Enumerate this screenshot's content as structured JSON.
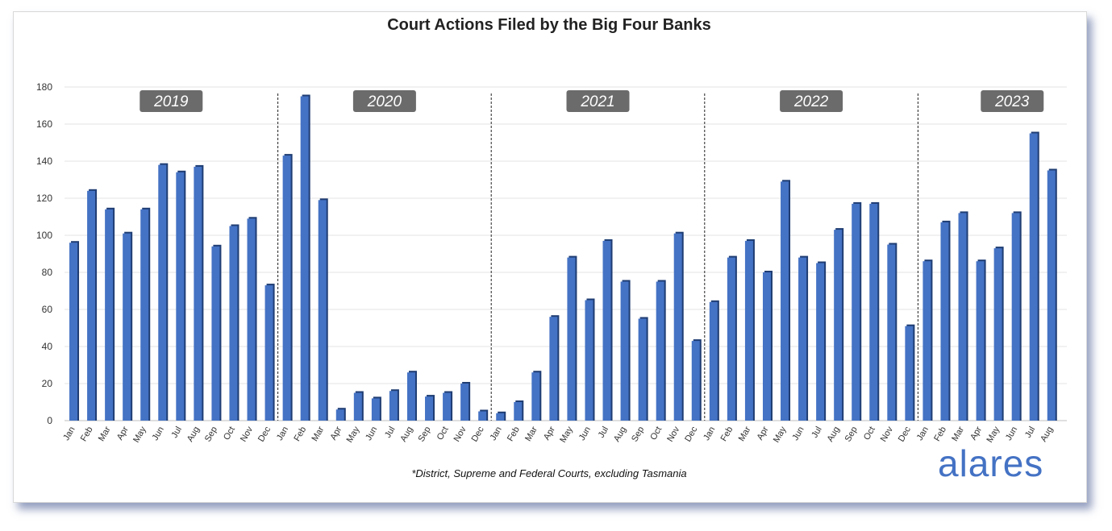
{
  "chart_data": {
    "type": "bar",
    "title": "Court Actions Filed by the Big Four Banks",
    "footnote": "*District, Supreme and Federal Courts, excluding Tasmania",
    "ylim": [
      0,
      180
    ],
    "yticks": [
      0,
      20,
      40,
      60,
      80,
      100,
      120,
      140,
      160,
      180
    ],
    "grid": true,
    "bar_color": "#4472c4",
    "years": [
      {
        "label": "2019",
        "months": [
          "Jan",
          "Feb",
          "Mar",
          "Apr",
          "May",
          "Jun",
          "Jul",
          "Aug",
          "Sep",
          "Oct",
          "Nov",
          "Dec"
        ],
        "values": [
          96,
          124,
          114,
          101,
          114,
          138,
          134,
          137,
          94,
          105,
          109,
          73
        ]
      },
      {
        "label": "2020",
        "months": [
          "Jan",
          "Feb",
          "Mar",
          "Apr",
          "May",
          "Jun",
          "Jul",
          "Aug",
          "Sep",
          "Oct",
          "Nov",
          "Dec"
        ],
        "values": [
          143,
          175,
          119,
          6,
          15,
          12,
          16,
          26,
          13,
          15,
          20,
          5
        ]
      },
      {
        "label": "2021",
        "months": [
          "Jan",
          "Feb",
          "Mar",
          "Apr",
          "May",
          "Jun",
          "Jul",
          "Aug",
          "Sep",
          "Oct",
          "Nov",
          "Dec"
        ],
        "values": [
          4,
          10,
          26,
          56,
          88,
          65,
          97,
          75,
          55,
          75,
          101,
          43
        ]
      },
      {
        "label": "2022",
        "months": [
          "Jan",
          "Feb",
          "Mar",
          "Apr",
          "May",
          "Jun",
          "Jul",
          "Aug",
          "Sep",
          "Oct",
          "Nov",
          "Dec"
        ],
        "values": [
          64,
          88,
          97,
          80,
          129,
          88,
          85,
          103,
          117,
          117,
          95,
          51
        ]
      },
      {
        "label": "2023",
        "months": [
          "Jan",
          "Feb",
          "Mar",
          "Apr",
          "May",
          "Jun",
          "Jul",
          "Aug"
        ],
        "values": [
          86,
          107,
          112,
          86,
          93,
          112,
          155,
          135
        ]
      }
    ]
  },
  "brand": {
    "logo_text": "alares"
  }
}
